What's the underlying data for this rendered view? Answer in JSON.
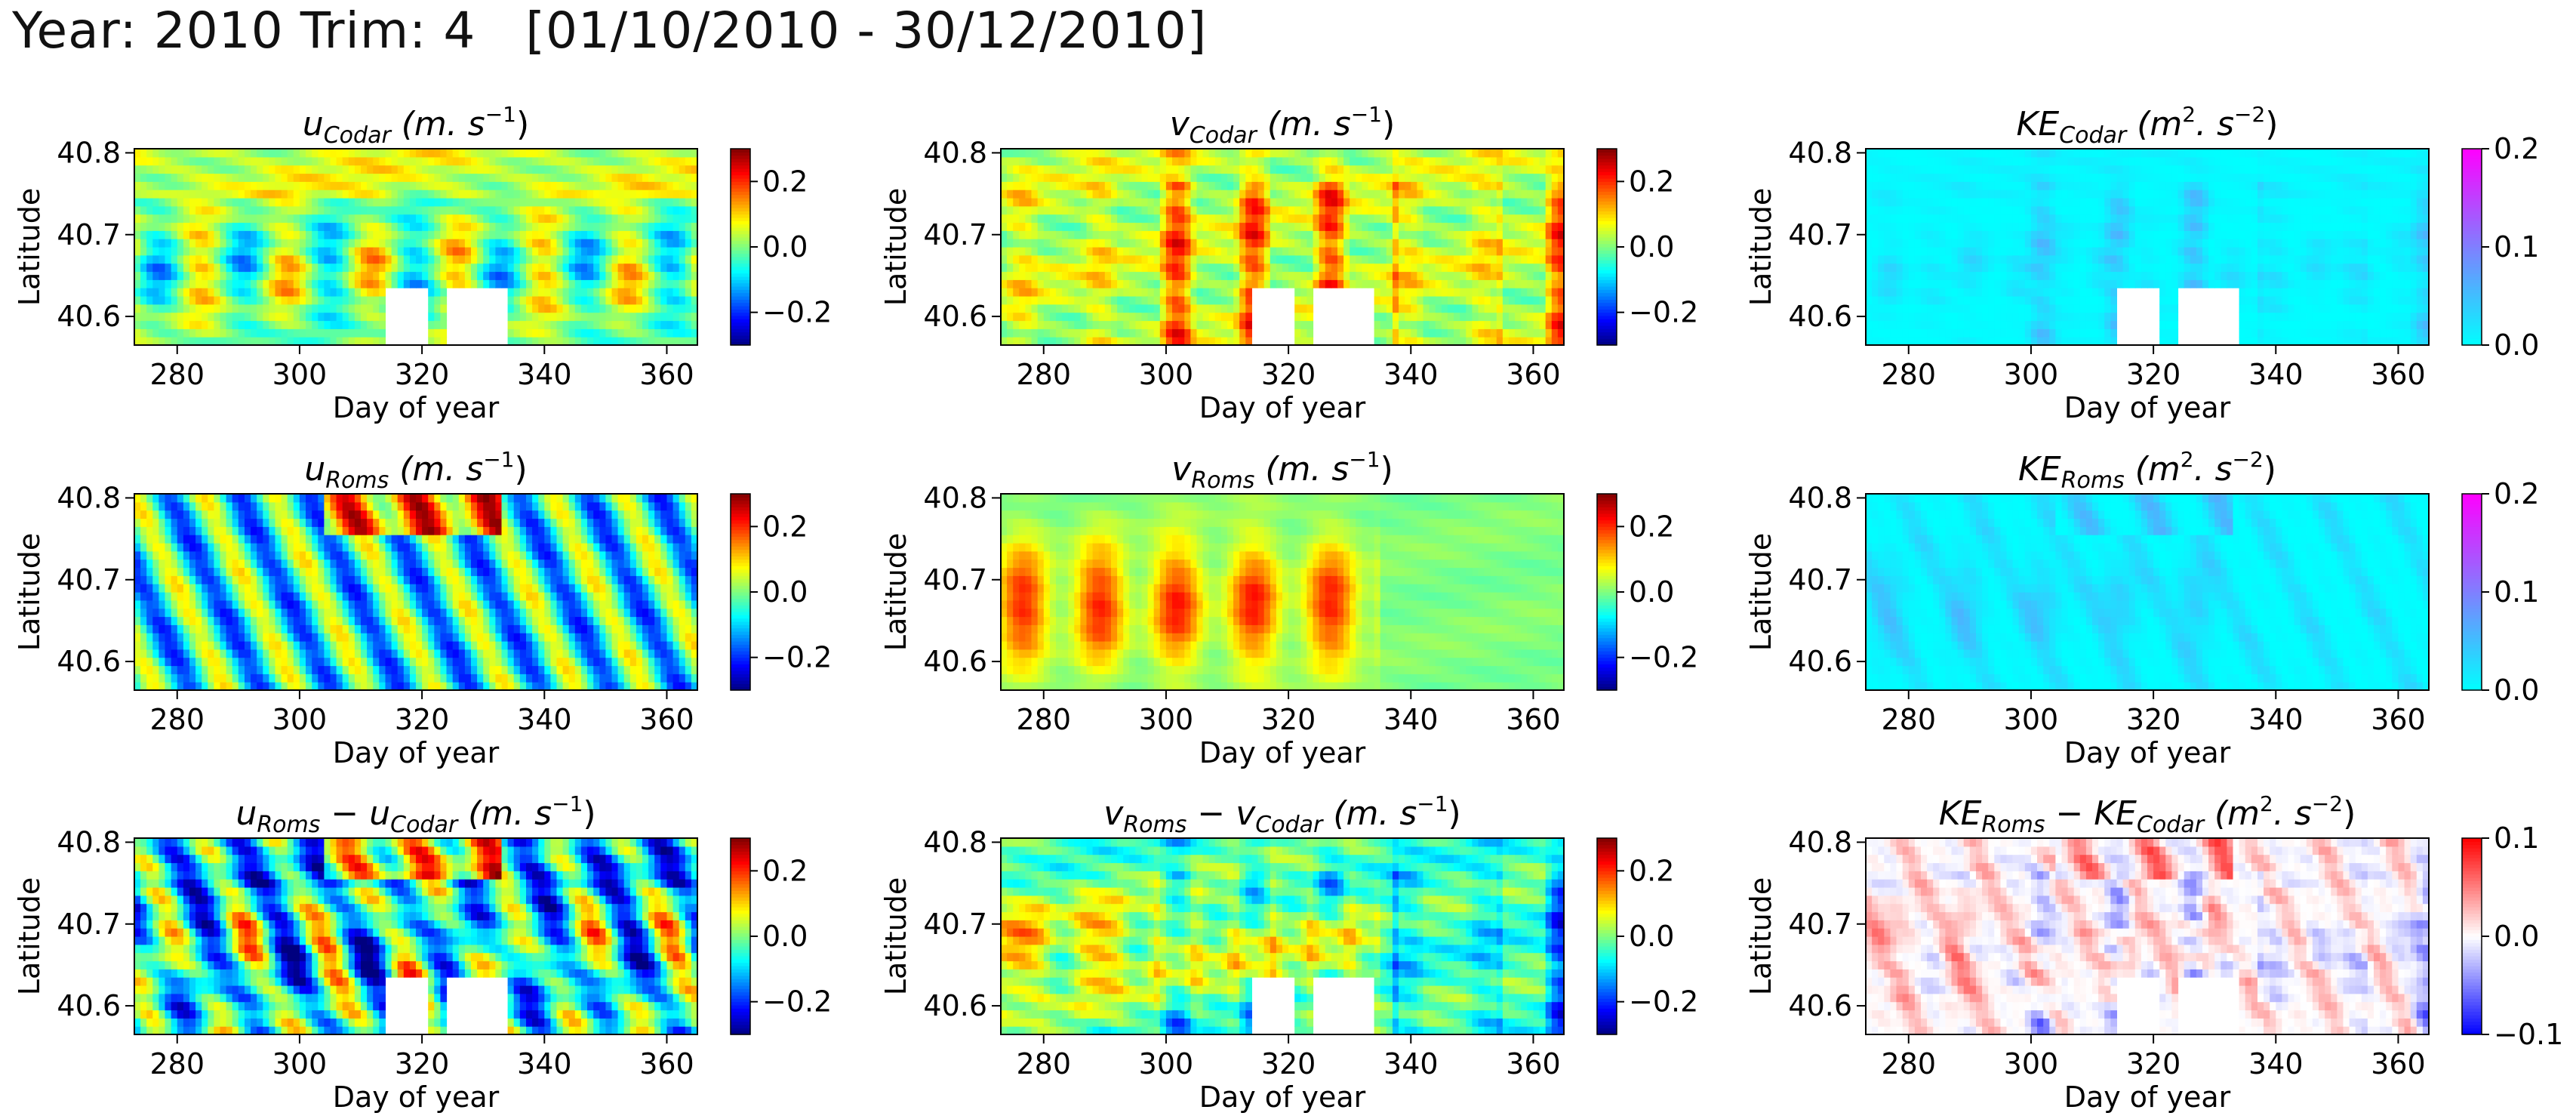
{
  "suptitle": "Year: 2010 Trim: 4   [01/10/2010 - 30/12/2010]",
  "chart_data": {
    "type": "heatmap",
    "shared": {
      "xlabel": "Day of year",
      "ylabel": "Latitude",
      "xlim": [
        273,
        365
      ],
      "ylim": [
        40.565,
        40.805
      ],
      "xticks": [
        "280",
        "300",
        "320",
        "340",
        "360"
      ],
      "yticks": [
        "40.6",
        "40.7",
        "40.8"
      ]
    },
    "panels": [
      {
        "id": "u_codar",
        "var": "u",
        "title_base": "u",
        "title_sub": "Codar",
        "title_units": "(m. s",
        "title_exp": "−1",
        "units_close": ")",
        "field": "u_codar",
        "colormap": "jet",
        "clim": [
          -0.3,
          0.3
        ],
        "cbar_ticks": [
          "0.2",
          "0.0",
          "−0.2"
        ],
        "cbar_tick_values": [
          0.2,
          0.0,
          -0.2
        ],
        "mask": "codar_gap"
      },
      {
        "id": "v_codar",
        "var": "v",
        "title_base": "v",
        "title_sub": "Codar",
        "title_units": "(m. s",
        "title_exp": "−1",
        "units_close": ")",
        "field": "v_codar",
        "colormap": "jet",
        "clim": [
          -0.3,
          0.3
        ],
        "cbar_ticks": [
          "0.2",
          "0.0",
          "−0.2"
        ],
        "cbar_tick_values": [
          0.2,
          0.0,
          -0.2
        ],
        "mask": "codar_gap"
      },
      {
        "id": "ke_codar",
        "var": "KE",
        "title_base": "KE",
        "title_sub": "Codar",
        "title_units": "(m",
        "title_exp": "2",
        "units_mid": ". s",
        "title_exp2": "−2",
        "units_close": ")",
        "field": "ke_codar",
        "colormap": "cool",
        "clim": [
          0.0,
          0.2
        ],
        "cbar_ticks": [
          "0.2",
          "0.1",
          "0.0"
        ],
        "cbar_tick_values": [
          0.2,
          0.1,
          0.0
        ],
        "mask": "codar_gap"
      },
      {
        "id": "u_roms",
        "var": "u",
        "title_base": "u",
        "title_sub": "Roms",
        "title_units": "(m. s",
        "title_exp": "−1",
        "units_close": ")",
        "field": "u_roms",
        "colormap": "jet",
        "clim": [
          -0.3,
          0.3
        ],
        "cbar_ticks": [
          "0.2",
          "0.0",
          "−0.2"
        ],
        "cbar_tick_values": [
          0.2,
          0.0,
          -0.2
        ],
        "mask": "none"
      },
      {
        "id": "v_roms",
        "var": "v",
        "title_base": "v",
        "title_sub": "Roms",
        "title_units": "(m. s",
        "title_exp": "−1",
        "units_close": ")",
        "field": "v_roms",
        "colormap": "jet",
        "clim": [
          -0.3,
          0.3
        ],
        "cbar_ticks": [
          "0.2",
          "0.0",
          "−0.2"
        ],
        "cbar_tick_values": [
          0.2,
          0.0,
          -0.2
        ],
        "mask": "none"
      },
      {
        "id": "ke_roms",
        "var": "KE",
        "title_base": "KE",
        "title_sub": "Roms",
        "title_units": "(m",
        "title_exp": "2",
        "units_mid": ". s",
        "title_exp2": "−2",
        "units_close": ")",
        "field": "ke_roms",
        "colormap": "cool",
        "clim": [
          0.0,
          0.2
        ],
        "cbar_ticks": [
          "0.2",
          "0.1",
          "0.0"
        ],
        "cbar_tick_values": [
          0.2,
          0.1,
          0.0
        ],
        "mask": "none"
      },
      {
        "id": "u_diff",
        "var": "u",
        "title_base": "u",
        "title_sub": "Roms",
        "title_minus": "− u",
        "title_sub2": "Codar",
        "title_units": "(m. s",
        "title_exp": "−1",
        "units_close": ")",
        "field": "u_diff",
        "colormap": "jet",
        "clim": [
          -0.3,
          0.3
        ],
        "cbar_ticks": [
          "0.2",
          "0.0",
          "−0.2"
        ],
        "cbar_tick_values": [
          0.2,
          0.0,
          -0.2
        ],
        "mask": "codar_gap"
      },
      {
        "id": "v_diff",
        "var": "v",
        "title_base": "v",
        "title_sub": "Roms",
        "title_minus": "− v",
        "title_sub2": "Codar",
        "title_units": "(m. s",
        "title_exp": "−1",
        "units_close": ")",
        "field": "v_diff",
        "colormap": "jet",
        "clim": [
          -0.3,
          0.3
        ],
        "cbar_ticks": [
          "0.2",
          "0.0",
          "−0.2"
        ],
        "cbar_tick_values": [
          0.2,
          0.0,
          -0.2
        ],
        "mask": "codar_gap"
      },
      {
        "id": "ke_diff",
        "var": "KE",
        "title_base": "KE",
        "title_sub": "Roms",
        "title_minus": "− KE",
        "title_sub2": "Codar",
        "title_units": "(m",
        "title_exp": "2",
        "units_mid": ". s",
        "title_exp2": "−2",
        "units_close": ")",
        "field": "ke_diff",
        "colormap": "bwr",
        "clim": [
          -0.1,
          0.1
        ],
        "cbar_ticks": [
          "0.1",
          "0.0",
          "−0.1"
        ],
        "cbar_tick_values": [
          0.1,
          0.0,
          -0.1
        ],
        "mask": "codar_gap"
      }
    ],
    "codar_gap": {
      "day_ranges": [
        [
          314,
          320
        ],
        [
          324,
          333
        ]
      ],
      "lat_max": 40.635
    },
    "grid": {
      "days": 92,
      "lat_bins": 24
    },
    "colormaps": {
      "jet": [
        "#00007f",
        "#0000ff",
        "#007fff",
        "#00ffff",
        "#7fff7f",
        "#ffff00",
        "#ff7f00",
        "#ff0000",
        "#7f0000"
      ],
      "cool": [
        "#00ffff",
        "#ff00ff"
      ],
      "bwr": [
        "#0000ff",
        "#ffffff",
        "#ff0000"
      ]
    }
  }
}
